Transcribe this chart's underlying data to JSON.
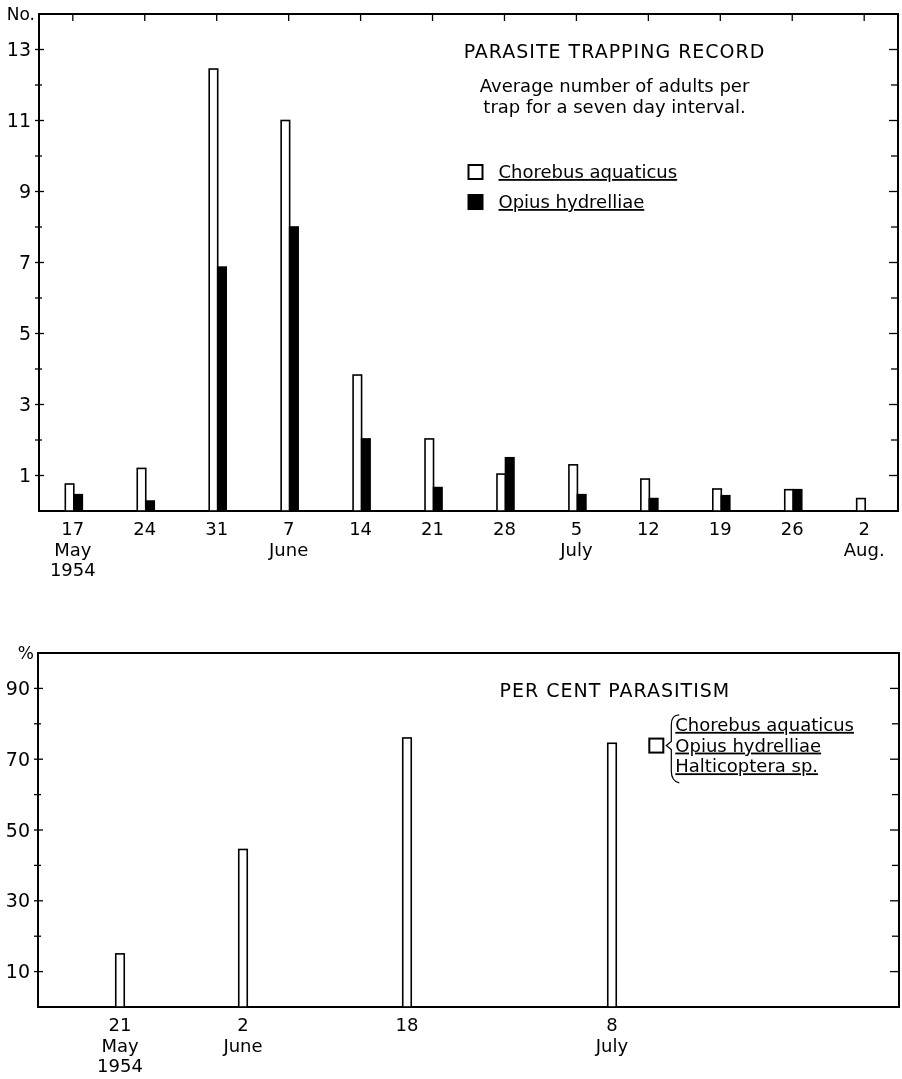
{
  "chart_data": [
    {
      "type": "bar",
      "title": "PARASITE TRAPPING RECORD",
      "subtitle": "Average number of adults per\ntrap for a seven day interval.",
      "ylabel": "No.",
      "categories": [
        "17\nMay\n1954",
        "24",
        "31",
        "7\nJune",
        "14",
        "21",
        "28",
        "5\nJuly",
        "12",
        "19",
        "26",
        "2\nAug."
      ],
      "series": [
        {
          "name": "Chorebus aquaticus",
          "color": "#ffffff",
          "values": [
            0.76,
            1.2,
            12.45,
            11.0,
            3.83,
            2.03,
            1.04,
            1.3,
            0.9,
            0.62,
            0.6,
            0.35
          ]
        },
        {
          "name": "Opius hydrelliae",
          "color": "#000000",
          "values": [
            0.46,
            0.28,
            6.87,
            8.0,
            2.03,
            0.66,
            1.5,
            0.46,
            0.35,
            0.43,
            0.6,
            null
          ]
        }
      ],
      "ylim": [
        0,
        14
      ],
      "yticks": [
        1,
        {
          "value": 2,
          "label": null
        },
        3,
        {
          "value": 4,
          "label": null
        },
        5,
        {
          "value": 6,
          "label": null
        },
        7,
        {
          "value": 8,
          "label": null
        },
        9,
        {
          "value": 10,
          "label": null
        },
        11,
        {
          "value": 12,
          "label": null
        },
        13
      ],
      "legend": "top right"
    },
    {
      "type": "bar",
      "title": "PER CENT PARASITISM",
      "ylabel": "%",
      "x": [
        "1954-05-21",
        "1954-06-02",
        "1954-06-18",
        "1954-07-08"
      ],
      "xlim": [
        "1954-05-13",
        "1954-08-05"
      ],
      "xticks": [
        {
          "value": "1954-05-21",
          "label": "21\nMay\n1954"
        },
        {
          "value": "1954-06-02",
          "label": "2\nJune"
        },
        {
          "value": "1954-06-18",
          "label": "18"
        },
        {
          "value": "1954-07-08",
          "label": "8\nJuly"
        }
      ],
      "series": [
        {
          "name": "Chorebus aquaticus\nOpius hydrelliae\nHalticoptera sp.",
          "color": "#ffffff",
          "values": [
            15,
            44.5,
            76,
            74.5
          ]
        }
      ],
      "ylim": [
        0,
        100
      ],
      "yticks": [
        10,
        {
          "value": 20,
          "label": null
        },
        30,
        {
          "value": 40,
          "label": null
        },
        50,
        {
          "value": 60,
          "label": null
        },
        70,
        {
          "value": 80,
          "label": null
        },
        90
      ],
      "legend": "right"
    }
  ]
}
